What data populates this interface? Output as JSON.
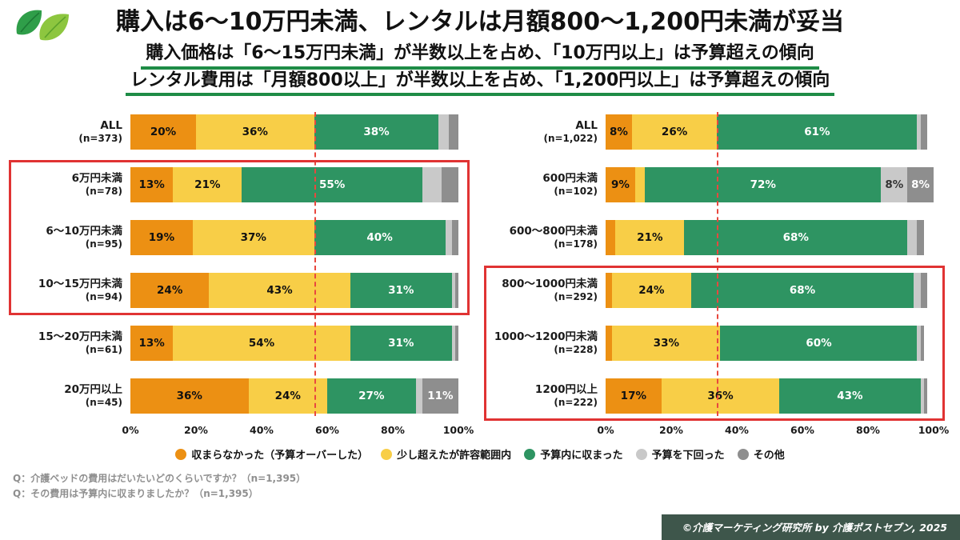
{
  "header": {
    "title": "購入は6〜10万円未満、レンタルは月額800〜1,200円未満が妥当",
    "subtitle_line1": "購入価格は「6〜15万円未満」が半数以上を占め、「10万円以上」は予算超えの傾向",
    "subtitle_line2": "レンタル費用は「月額800以上」が半数以上を占め、「1,200円以上」は予算超えの傾向"
  },
  "colors": {
    "orange": "#EC9013",
    "yellow": "#F8CE47",
    "green": "#2E9462",
    "light_gray": "#C9C9C9",
    "dark_gray": "#8E8E8E",
    "highlight_red": "#E03333",
    "underline_green": "#1E8C46",
    "footer_bar": "#3E564B"
  },
  "axis_ticks": [
    "0%",
    "20%",
    "40%",
    "60%",
    "80%",
    "100%"
  ],
  "legend": [
    {
      "label": "収まらなかった（予算オーバーした）",
      "color": "orange"
    },
    {
      "label": "少し超えたが許容範囲内",
      "color": "yellow"
    },
    {
      "label": "予算内に収まった",
      "color": "green"
    },
    {
      "label": "予算を下回った",
      "color": "light_gray"
    },
    {
      "label": "その他",
      "color": "dark_gray"
    }
  ],
  "chart_data": [
    {
      "type": "bar",
      "stacked": true,
      "orientation": "horizontal",
      "xlim": [
        0,
        100
      ],
      "series_names": [
        "収まらなかった（予算オーバーした）",
        "少し超えたが許容範囲内",
        "予算内に収まった",
        "予算を下回った",
        "その他"
      ],
      "rows": [
        {
          "label": "ALL",
          "n": "(n=373)",
          "values": [
            20,
            36,
            38,
            3,
            3
          ]
        },
        {
          "label": "6万円未満",
          "n": "(n=78)",
          "values": [
            13,
            21,
            55,
            6,
            5
          ]
        },
        {
          "label": "6〜10万円未満",
          "n": "(n=95)",
          "values": [
            19,
            37,
            40,
            2,
            2
          ]
        },
        {
          "label": "10〜15万円未満",
          "n": "(n=94)",
          "values": [
            24,
            43,
            31,
            1,
            1
          ]
        },
        {
          "label": "15〜20万円未満",
          "n": "(n=61)",
          "values": [
            13,
            54,
            31,
            1,
            1
          ]
        },
        {
          "label": "20万円以上",
          "n": "(n=45)",
          "values": [
            36,
            24,
            27,
            2,
            11
          ]
        }
      ],
      "reference_line_pct": 56,
      "highlight_rows": [
        1,
        3
      ]
    },
    {
      "type": "bar",
      "stacked": true,
      "orientation": "horizontal",
      "xlim": [
        0,
        100
      ],
      "series_names": [
        "収まらなかった（予算オーバーした）",
        "少し超えたが許容範囲内",
        "予算内に収まった",
        "予算を下回った",
        "その他"
      ],
      "rows": [
        {
          "label": "ALL",
          "n": "(n=1,022)",
          "values": [
            8,
            26,
            61,
            1,
            2
          ]
        },
        {
          "label": "600円未満",
          "n": "(n=102)",
          "values": [
            9,
            3,
            72,
            8,
            8
          ]
        },
        {
          "label": "600〜800円未満",
          "n": "(n=178)",
          "values": [
            3,
            21,
            68,
            3,
            2
          ]
        },
        {
          "label": "800〜1000円未満",
          "n": "(n=292)",
          "values": [
            2,
            24,
            68,
            2,
            2
          ]
        },
        {
          "label": "1000〜1200円未満",
          "n": "(n=228)",
          "values": [
            2,
            33,
            60,
            1,
            1
          ]
        },
        {
          "label": "1200円以上",
          "n": "(n=222)",
          "values": [
            17,
            36,
            43,
            1,
            1
          ]
        }
      ],
      "reference_line_pct": 34,
      "highlight_rows": [
        3,
        5
      ]
    }
  ],
  "footnotes": [
    "Q：介護ベッドの費用はだいたいどのくらいですか？（n=1,395）",
    "Q：その費用は予算内に収まりましたか？（n=1,395）"
  ],
  "copyright": "©介護マーケティング研究所 by 介護ポストセブン, 2025"
}
